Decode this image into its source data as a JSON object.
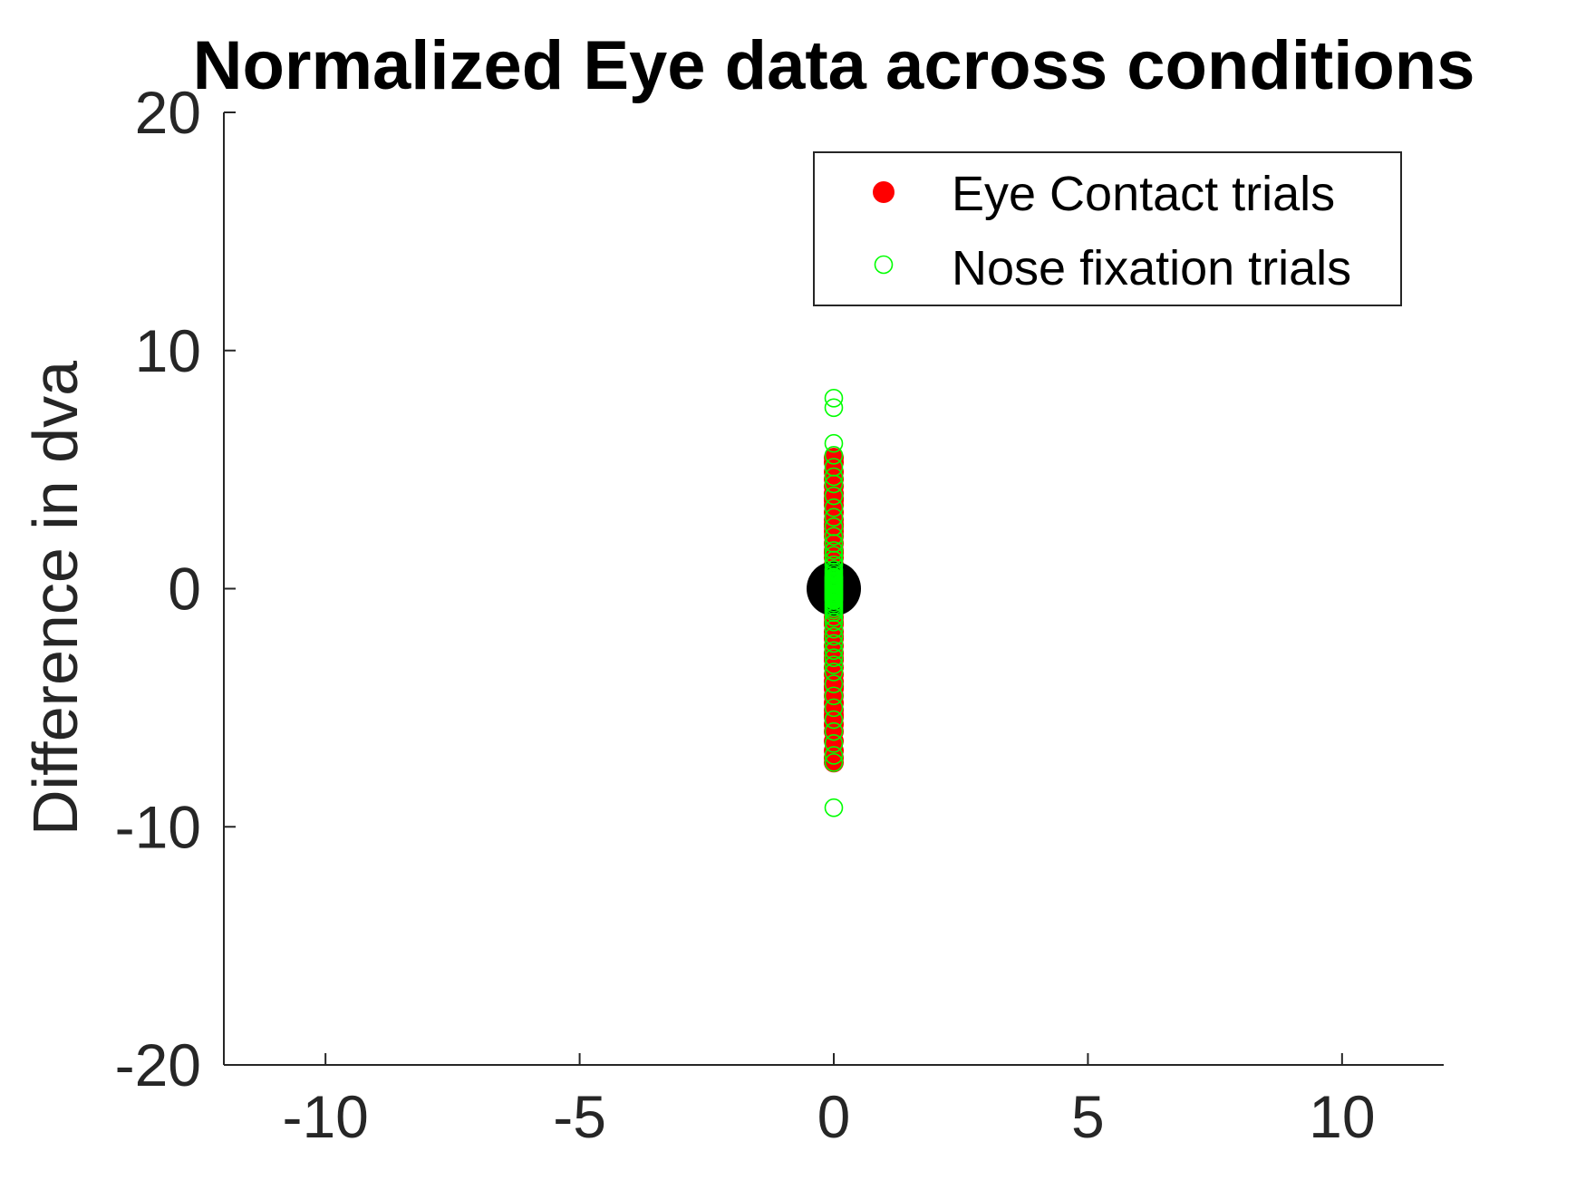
{
  "chart_data": {
    "type": "scatter",
    "title": "Normalized Eye data across conditions",
    "xlabel": "",
    "ylabel": "Difference in dva",
    "xlim": [
      -12,
      12
    ],
    "ylim": [
      -20,
      20
    ],
    "xticks": [
      -10,
      -5,
      0,
      5,
      10
    ],
    "yticks": [
      -20,
      -10,
      0,
      10,
      20
    ],
    "xtick_labels": [
      "-10",
      "-5",
      "0",
      "5",
      "10"
    ],
    "ytick_labels": [
      "-20",
      "-10",
      "0",
      "10",
      "20"
    ],
    "grid": false,
    "legend_position": "top-right",
    "series": [
      {
        "name": "Eye Contact trials",
        "marker": "filled-circle",
        "color": "#ff0000",
        "x": [
          0,
          0,
          0,
          0,
          0,
          0,
          0,
          0,
          0,
          0,
          0,
          0,
          0,
          0,
          0,
          0,
          0,
          0,
          0,
          0,
          0,
          0,
          0,
          0,
          0,
          0,
          0,
          0,
          0,
          0,
          0,
          0,
          0,
          0,
          0,
          0,
          0,
          0,
          0,
          0,
          0,
          0,
          0,
          0,
          0,
          0,
          0,
          0,
          0,
          0,
          0,
          0,
          0,
          0,
          0
        ],
        "y": [
          5.5,
          5.3,
          4.9,
          4.6,
          4.3,
          4.0,
          3.8,
          3.5,
          3.2,
          2.9,
          2.7,
          2.4,
          2.2,
          1.9,
          1.6,
          1.3,
          1.0,
          0.8,
          0.5,
          0.3,
          0.0,
          -0.3,
          -0.6,
          -0.9,
          -1.2,
          -1.5,
          -1.8,
          -2.1,
          -2.4,
          -2.7,
          -3.0,
          -3.3,
          -3.6,
          -3.9,
          -4.2,
          -4.5,
          -4.8,
          -5.1,
          -5.4,
          -5.7,
          -6.0,
          -6.4,
          -6.8,
          -7.1,
          -7.3,
          -2.0,
          -0.8,
          0.4,
          1.5,
          2.6,
          3.7,
          -1.4,
          -2.9,
          -4.1,
          -5.3
        ]
      },
      {
        "name": "Nose fixation trials",
        "marker": "open-circle",
        "color": "#00ff00",
        "x": [
          0,
          0,
          0,
          0,
          0,
          0,
          0,
          0,
          0,
          0,
          0,
          0,
          0,
          0,
          0,
          0,
          0,
          0,
          0,
          0,
          0,
          0,
          0,
          0,
          0,
          0,
          0,
          0,
          0,
          0,
          0,
          0,
          0,
          0,
          0,
          0,
          0,
          0,
          0,
          0,
          0,
          0,
          0,
          0,
          0,
          0,
          0,
          0,
          0,
          0,
          0,
          0,
          0,
          0,
          0,
          0,
          0,
          0,
          0,
          0,
          0,
          0,
          0,
          0
        ],
        "y": [
          8.0,
          7.6,
          6.1,
          5.6,
          5.1,
          4.7,
          4.4,
          3.9,
          3.4,
          3.0,
          2.6,
          2.2,
          1.9,
          1.6,
          1.4,
          1.2,
          1.0,
          0.8,
          0.7,
          0.6,
          0.5,
          0.4,
          0.3,
          0.2,
          0.1,
          0.0,
          -0.1,
          -0.2,
          -0.3,
          -0.4,
          -0.5,
          -0.6,
          -0.7,
          -0.8,
          -0.9,
          -1.0,
          -1.2,
          -1.4,
          -1.7,
          -2.0,
          -2.3,
          -2.6,
          -2.9,
          -3.2,
          -3.5,
          -4.0,
          -4.5,
          -5.0,
          -5.5,
          -6.0,
          -6.5,
          -7.0,
          -7.3,
          -9.2,
          0.15,
          0.25,
          0.35,
          0.45,
          -0.05,
          -0.15,
          -0.25,
          -0.35,
          -0.45,
          0.05
        ]
      }
    ],
    "center_marker": {
      "x": 0,
      "y": 0,
      "color": "#000000"
    }
  }
}
